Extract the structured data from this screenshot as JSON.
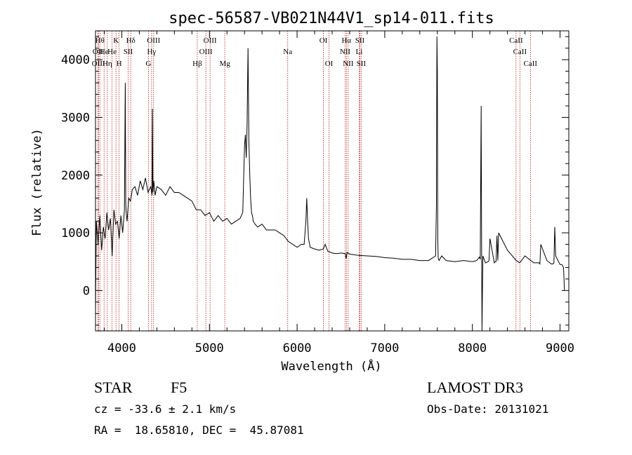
{
  "chart_data": {
    "type": "line",
    "title": "spec-56587-VB021N44V1_sp14-011.fits",
    "xlabel": "Wavelength (Å)",
    "ylabel": "Flux (relative)",
    "xlim": [
      3700,
      9100
    ],
    "ylim": [
      -700,
      4500
    ],
    "x_ticks": [
      4000,
      5000,
      6000,
      7000,
      8000,
      9000
    ],
    "x_tick_labels": [
      "4000",
      "5000",
      "6000",
      "7000",
      "8000",
      "9000"
    ],
    "y_ticks": [
      0,
      1000,
      2000,
      3000,
      4000
    ],
    "y_tick_labels": [
      "0",
      "1000",
      "2000",
      "3000",
      "4000"
    ],
    "grid": false,
    "series": [
      {
        "name": "spectrum",
        "x": [
          3700,
          3710,
          3730,
          3750,
          3770,
          3790,
          3810,
          3830,
          3850,
          3870,
          3890,
          3910,
          3930,
          3950,
          3970,
          3990,
          4010,
          4030,
          4040,
          4045,
          4050,
          4060,
          4080,
          4100,
          4120,
          4150,
          4180,
          4210,
          4240,
          4270,
          4300,
          4330,
          4345,
          4350,
          4355,
          4365,
          4380,
          4400,
          4450,
          4500,
          4550,
          4600,
          4650,
          4700,
          4750,
          4800,
          4850,
          4900,
          4950,
          5000,
          5050,
          5100,
          5150,
          5200,
          5250,
          5300,
          5350,
          5380,
          5400,
          5410,
          5420,
          5430,
          5440,
          5450,
          5460,
          5470,
          5480,
          5490,
          5500,
          5520,
          5550,
          5600,
          5650,
          5700,
          5750,
          5800,
          5850,
          5900,
          5950,
          6000,
          6050,
          6080,
          6100,
          6110,
          6120,
          6130,
          6150,
          6200,
          6250,
          6300,
          6320,
          6350,
          6400,
          6450,
          6500,
          6550,
          6560,
          6570,
          6600,
          6700,
          6800,
          6900,
          7000,
          7100,
          7200,
          7300,
          7400,
          7500,
          7580,
          7590,
          7595,
          7600,
          7605,
          7610,
          7620,
          7650,
          7700,
          7800,
          7900,
          8000,
          8050,
          8080,
          8090,
          8100,
          8105,
          8110,
          8115,
          8120,
          8150,
          8180,
          8190,
          8200,
          8250,
          8260,
          8270,
          8280,
          8290,
          8300,
          8400,
          8500,
          8520,
          8540,
          8600,
          8700,
          8750,
          8760,
          8770,
          8780,
          8850,
          8900,
          8920,
          8930,
          8940,
          8950,
          9000,
          9020,
          9040,
          9050
        ],
        "y": [
          -350,
          1200,
          800,
          1300,
          700,
          1100,
          900,
          1350,
          1050,
          1250,
          600,
          1400,
          1150,
          1200,
          900,
          1300,
          1000,
          1400,
          3600,
          1500,
          1350,
          1200,
          1600,
          1550,
          1750,
          1800,
          1650,
          1900,
          1750,
          1950,
          1700,
          1800,
          1650,
          3150,
          1700,
          1900,
          1650,
          1800,
          1750,
          1650,
          1800,
          1700,
          1700,
          1650,
          1600,
          1550,
          1400,
          1400,
          1300,
          1350,
          1200,
          1300,
          1200,
          1250,
          1150,
          1200,
          1250,
          1350,
          2500,
          2700,
          2300,
          2900,
          4200,
          2600,
          2000,
          1600,
          1350,
          1300,
          1200,
          1150,
          1100,
          1150,
          1050,
          1050,
          1050,
          1000,
          950,
          850,
          800,
          750,
          800,
          800,
          1200,
          1600,
          1200,
          900,
          750,
          720,
          700,
          720,
          800,
          680,
          650,
          640,
          650,
          640,
          550,
          660,
          630,
          610,
          600,
          590,
          570,
          560,
          540,
          540,
          520,
          520,
          600,
          1500,
          4400,
          3800,
          900,
          560,
          520,
          600,
          520,
          500,
          520,
          500,
          520,
          580,
          540,
          3200,
          900,
          -700,
          100,
          600,
          480,
          500,
          520,
          900,
          480,
          500,
          500,
          950,
          520,
          1000,
          700,
          520,
          500,
          480,
          600,
          480,
          480,
          480,
          460,
          800,
          520,
          460,
          460,
          480,
          1100,
          600,
          450,
          450,
          400,
          0
        ]
      }
    ],
    "line_labels": [
      {
        "wl": 3750,
        "name": "Hθ",
        "row": 1
      },
      {
        "wl": 3727,
        "name": "OII",
        "row": 2
      },
      {
        "wl": 3734,
        "name": "OIII",
        "row": 3
      },
      {
        "wl": 3798,
        "name": "He",
        "row": 2
      },
      {
        "wl": 3835,
        "name": "Hη",
        "row": 3
      },
      {
        "wl": 3889,
        "name": "He",
        "row": 2
      },
      {
        "wl": 3934,
        "name": "K",
        "row": 1
      },
      {
        "wl": 3969,
        "name": "H",
        "row": 3
      },
      {
        "wl": 4072,
        "name": "SII",
        "row": 2
      },
      {
        "wl": 4102,
        "name": "Hδ",
        "row": 1
      },
      {
        "wl": 4340,
        "name": "Hγ",
        "row": 2
      },
      {
        "wl": 4304,
        "name": "G",
        "row": 3
      },
      {
        "wl": 4363,
        "name": "OIII",
        "row": 1
      },
      {
        "wl": 4861,
        "name": "Hβ",
        "row": 3
      },
      {
        "wl": 4959,
        "name": "OIII",
        "row": 2
      },
      {
        "wl": 5007,
        "name": "OIII",
        "row": 1
      },
      {
        "wl": 5175,
        "name": "Mg",
        "row": 3
      },
      {
        "wl": 5893,
        "name": "Na",
        "row": 2
      },
      {
        "wl": 6300,
        "name": "OI",
        "row": 1
      },
      {
        "wl": 6364,
        "name": "OI",
        "row": 3
      },
      {
        "wl": 6548,
        "name": "NII",
        "row": 2
      },
      {
        "wl": 6563,
        "name": "Hα",
        "row": 1
      },
      {
        "wl": 6583,
        "name": "NII",
        "row": 3
      },
      {
        "wl": 6708,
        "name": "Li",
        "row": 2
      },
      {
        "wl": 6716,
        "name": "SII",
        "row": 1
      },
      {
        "wl": 6731,
        "name": "SII",
        "row": 3
      },
      {
        "wl": 8498,
        "name": "CaII",
        "row": 1
      },
      {
        "wl": 8542,
        "name": "CaII",
        "row": 2
      },
      {
        "wl": 8662,
        "name": "CaII",
        "row": 3
      }
    ]
  },
  "info": {
    "object_class": "STAR",
    "subclass": "F5",
    "survey": "LAMOST DR3",
    "redshift": "cz = -33.6 ± 2.1 km/s",
    "obs_date": "Obs-Date: 20131021",
    "coords": "RA =  18.65810, DEC =  45.87081"
  },
  "colors": {
    "line_marker": "#b22222",
    "spectrum": "#000000"
  }
}
